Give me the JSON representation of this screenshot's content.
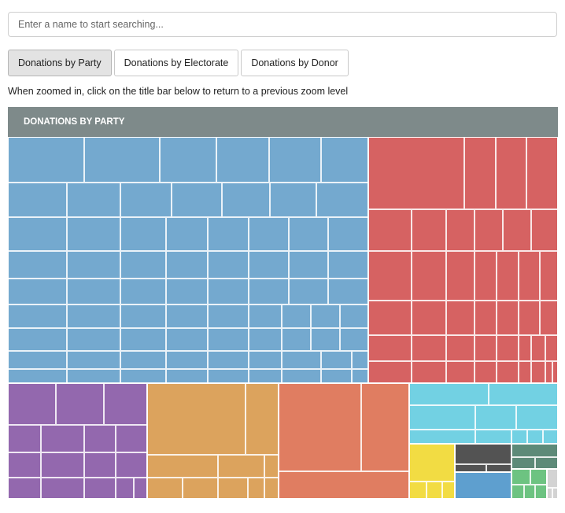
{
  "search": {
    "placeholder": "Enter a name to start searching..."
  },
  "tabs": [
    {
      "label": "Donations by Party",
      "active": true
    },
    {
      "label": "Donations by Electorate",
      "active": false
    },
    {
      "label": "Donations by Donor",
      "active": false
    }
  ],
  "hint": "When zoomed in, click on the title bar below to return to a previous zoom level",
  "treemap": {
    "title": "DONATIONS BY PARTY",
    "groups": [
      {
        "name": "party-blue",
        "color": "#74a9cf"
      },
      {
        "name": "party-red",
        "color": "#d66262"
      },
      {
        "name": "party-purple",
        "color": "#9368ae"
      },
      {
        "name": "party-gold",
        "color": "#dca35d"
      },
      {
        "name": "party-orange",
        "color": "#e07d61"
      },
      {
        "name": "party-cyan",
        "color": "#72d1e3"
      },
      {
        "name": "party-yellow",
        "color": "#f2dc43"
      },
      {
        "name": "party-darkgrey",
        "color": "#535353"
      },
      {
        "name": "party-steelblue",
        "color": "#5e9fcf"
      },
      {
        "name": "party-darkgreen",
        "color": "#5d8a78"
      },
      {
        "name": "party-green",
        "color": "#6dc381"
      },
      {
        "name": "party-lightgrey",
        "color": "#d3d3d3"
      }
    ]
  }
}
